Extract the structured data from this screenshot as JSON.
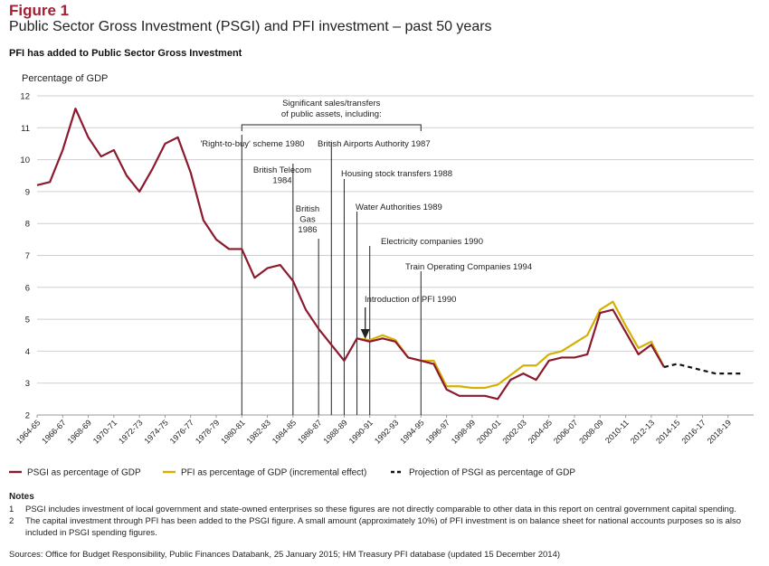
{
  "header": {
    "figure_label": "Figure 1",
    "title": "Public Sector Gross Investment (PSGI) and PFI investment – past 50 years",
    "subtitle": "PFI has added to Public Sector Gross Investment"
  },
  "colors": {
    "psgi": "#8b1a2e",
    "pfi": "#d4b100",
    "projection": "#111111",
    "grid": "#cfcfcf",
    "marker": "#222222"
  },
  "chart_data": {
    "type": "line",
    "ylabel": "Percentage of GDP",
    "ylim": [
      2,
      12
    ],
    "yticks": [
      2,
      3,
      4,
      5,
      6,
      7,
      8,
      9,
      10,
      11,
      12
    ],
    "grid": true,
    "legend_position": "bottom",
    "x_tick_labels": [
      "1964-65",
      "1966-67",
      "1968-69",
      "1970-71",
      "1972-73",
      "1974-75",
      "1976-77",
      "1978-79",
      "1980-81",
      "1982-83",
      "1984-85",
      "1986-87",
      "1988-89",
      "1990-91",
      "1992-93",
      "1994-95",
      "1996-97",
      "1998-99",
      "2000-01",
      "2002-03",
      "2004-05",
      "2006-07",
      "2008-09",
      "2010-11",
      "2012-13",
      "2014-15",
      "2016-17",
      "2018-19"
    ],
    "series": [
      {
        "name": "PSGI as percentage of GDP",
        "style": "solid",
        "color_key": "psgi",
        "x": [
          "1964-65",
          "1965-66",
          "1966-67",
          "1967-68",
          "1968-69",
          "1969-70",
          "1970-71",
          "1971-72",
          "1972-73",
          "1973-74",
          "1974-75",
          "1975-76",
          "1976-77",
          "1977-78",
          "1978-79",
          "1979-80",
          "1980-81",
          "1981-82",
          "1982-83",
          "1983-84",
          "1984-85",
          "1985-86",
          "1986-87",
          "1987-88",
          "1988-89",
          "1989-90",
          "1990-91",
          "1991-92",
          "1992-93",
          "1993-94",
          "1994-95",
          "1995-96",
          "1996-97",
          "1997-98",
          "1998-99",
          "1999-00",
          "2000-01",
          "2001-02",
          "2002-03",
          "2003-04",
          "2004-05",
          "2005-06",
          "2006-07",
          "2007-08",
          "2008-09",
          "2009-10",
          "2010-11",
          "2011-12",
          "2012-13",
          "2013-14"
        ],
        "values": [
          9.2,
          9.3,
          10.3,
          11.6,
          10.7,
          10.1,
          10.3,
          9.5,
          9.0,
          9.7,
          10.5,
          10.7,
          9.6,
          8.1,
          7.5,
          7.2,
          7.2,
          6.3,
          6.6,
          6.7,
          6.2,
          5.3,
          4.7,
          4.2,
          3.7,
          4.4,
          4.3,
          4.4,
          4.3,
          3.8,
          3.7,
          3.6,
          2.8,
          2.6,
          2.6,
          2.6,
          2.5,
          3.1,
          3.3,
          3.1,
          3.7,
          3.8,
          3.8,
          3.9,
          5.2,
          5.3,
          4.6,
          3.9,
          4.2,
          3.5
        ]
      },
      {
        "name": "PFI as percentage of GDP (incremental effect)",
        "style": "solid",
        "color_key": "pfi",
        "x": [
          "1989-90",
          "1990-91",
          "1991-92",
          "1992-93",
          "1993-94",
          "1994-95",
          "1995-96",
          "1996-97",
          "1997-98",
          "1998-99",
          "1999-00",
          "2000-01",
          "2001-02",
          "2002-03",
          "2003-04",
          "2004-05",
          "2005-06",
          "2006-07",
          "2007-08",
          "2008-09",
          "2009-10",
          "2010-11",
          "2011-12",
          "2012-13",
          "2013-14"
        ],
        "values": [
          4.4,
          4.35,
          4.5,
          4.35,
          3.8,
          3.7,
          3.7,
          2.9,
          2.9,
          2.85,
          2.85,
          2.95,
          3.25,
          3.55,
          3.55,
          3.9,
          4.0,
          4.25,
          4.5,
          5.3,
          5.55,
          4.8,
          4.1,
          4.3,
          3.5
        ]
      },
      {
        "name": "Projection of PSGI as percentage of GDP",
        "style": "dashed",
        "color_key": "projection",
        "x": [
          "2013-14",
          "2014-15",
          "2015-16",
          "2016-17",
          "2017-18",
          "2018-19",
          "2019-20"
        ],
        "values": [
          3.5,
          3.6,
          3.5,
          3.4,
          3.3,
          3.3,
          3.3
        ]
      }
    ],
    "annotations": {
      "bracket_label_line1": "Significant sales/transfers",
      "bracket_label_line2": "of public assets, including:",
      "bracket_from": "1980-81",
      "bracket_to": "1994-95",
      "events": [
        {
          "key": "rtb",
          "x": "1980-81",
          "lines": [
            "'Right-to-buy' scheme 1980"
          ]
        },
        {
          "key": "bt",
          "x": "1984-85",
          "lines": [
            "British Telecom",
            "1984"
          ]
        },
        {
          "key": "bgas",
          "x": "1986-87",
          "lines": [
            "British",
            "Gas",
            "1986"
          ]
        },
        {
          "key": "baa",
          "x": "1987-88",
          "lines": [
            "British Airports Authority 1987"
          ]
        },
        {
          "key": "housing",
          "x": "1988-89",
          "lines": [
            "Housing stock transfers 1988"
          ]
        },
        {
          "key": "water",
          "x": "1989-90",
          "lines": [
            "Water Authorities 1989"
          ]
        },
        {
          "key": "electricity",
          "x": "1990-91",
          "lines": [
            "Electricity companies 1990"
          ]
        },
        {
          "key": "toc",
          "x": "1994-95",
          "lines": [
            "Train Operating Companies 1994"
          ]
        }
      ],
      "pfi_intro": {
        "x": "1990-91",
        "label": "Introduction of PFI 1990"
      }
    }
  },
  "notes": {
    "heading": "Notes",
    "items": [
      {
        "num": "1",
        "text": "PSGI includes investment of local government and state-owned enterprises so these figures are not directly comparable to other data in this report on central government capital spending."
      },
      {
        "num": "2",
        "text": "The capital investment through PFI has been added to the PSGI figure. A small amount (approximately 10%) of PFI investment is on balance sheet for national accounts purposes so is also included in PSGI spending figures."
      }
    ]
  },
  "source": "Sources: Office for Budget Responsibility, Public Finances Databank, 25 January 2015; HM Treasury PFI database (updated 15 December 2014)"
}
